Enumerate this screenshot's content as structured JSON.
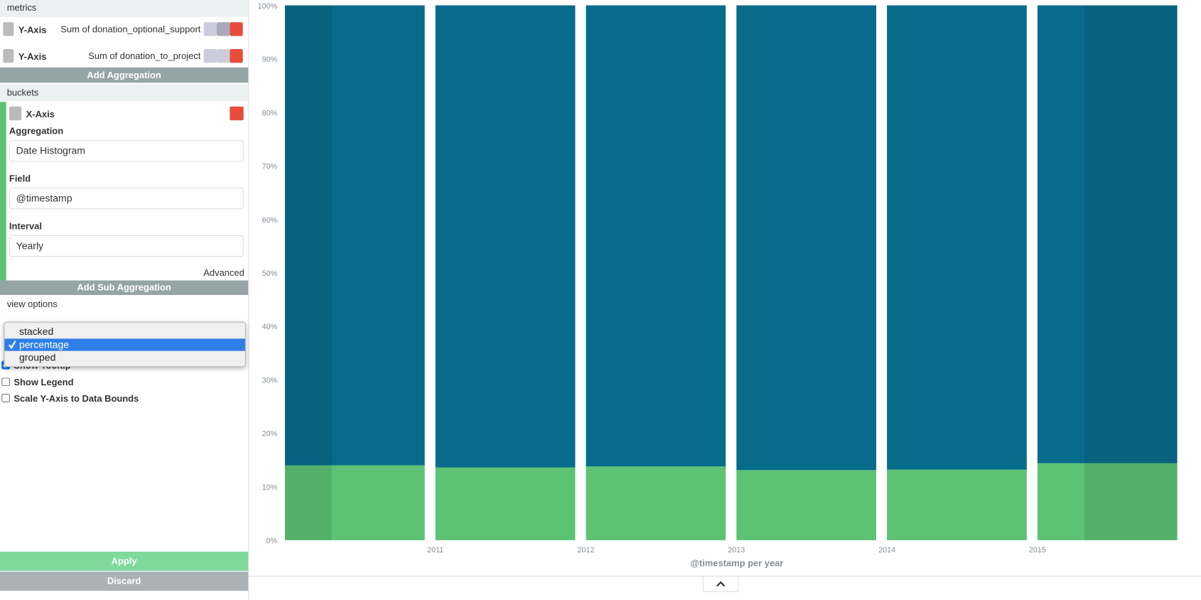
{
  "sidebar": {
    "metrics_header": "metrics",
    "metrics": [
      {
        "axis": "Y-Axis"
      },
      {
        "axis": "Y-Axis"
      }
    ],
    "add_aggregation": "Add Aggregation",
    "buckets_header": "buckets",
    "bucket": {
      "axis": "X-Axis",
      "aggregation_label": "Aggregation",
      "aggregation": "Date Histogram",
      "field_label": "Field",
      "field": "@timestamp",
      "interval_label": "Interval",
      "interval": "Yearly",
      "advanced": "Advanced",
      "add_sub_aggregation": "Add Sub Aggregation"
    },
    "view_options": "view options",
    "mode_options": [
      "stacked",
      "percentage",
      "grouped"
    ],
    "mode_selected": 1,
    "checkboxes": [
      {
        "label": "Show Tooltip",
        "checked": true
      },
      {
        "label": "Show Legend",
        "checked": false
      },
      {
        "label": "Scale Y-Axis to Data Bounds",
        "checked": false
      }
    ],
    "apply": "Apply",
    "discard": "Discard"
  },
  "chart_data": {
    "type": "bar",
    "stacked": true,
    "categories": [
      null,
      "2011",
      "2012",
      "2013",
      "2014",
      "2015"
    ],
    "series": [
      {
        "name": "Sum of donation_optional_support",
        "color": "#5cc274",
        "values": [
          14,
          13.6,
          13.8,
          13.1,
          13.2,
          14.4
        ]
      },
      {
        "name": "Sum of donation_to_project",
        "color": "#086b8c",
        "values": [
          86,
          86.4,
          86.2,
          86.9,
          86.8,
          85.6
        ]
      }
    ],
    "ylim": [
      0,
      100
    ],
    "yticks": [
      {
        "value": 0,
        "label": "0%"
      },
      {
        "value": 10,
        "label": "10%"
      },
      {
        "value": 20,
        "label": "20%"
      },
      {
        "value": 30,
        "label": "30%"
      },
      {
        "value": 40,
        "label": "40%"
      },
      {
        "value": 50,
        "label": "50%"
      },
      {
        "value": 60,
        "label": "60%"
      },
      {
        "value": 70,
        "label": "70%"
      },
      {
        "value": 80,
        "label": "80%"
      },
      {
        "value": 90,
        "label": "90%"
      },
      {
        "value": 100,
        "label": "100%"
      }
    ],
    "xlabel": "@timestamp per year",
    "grid": false
  }
}
